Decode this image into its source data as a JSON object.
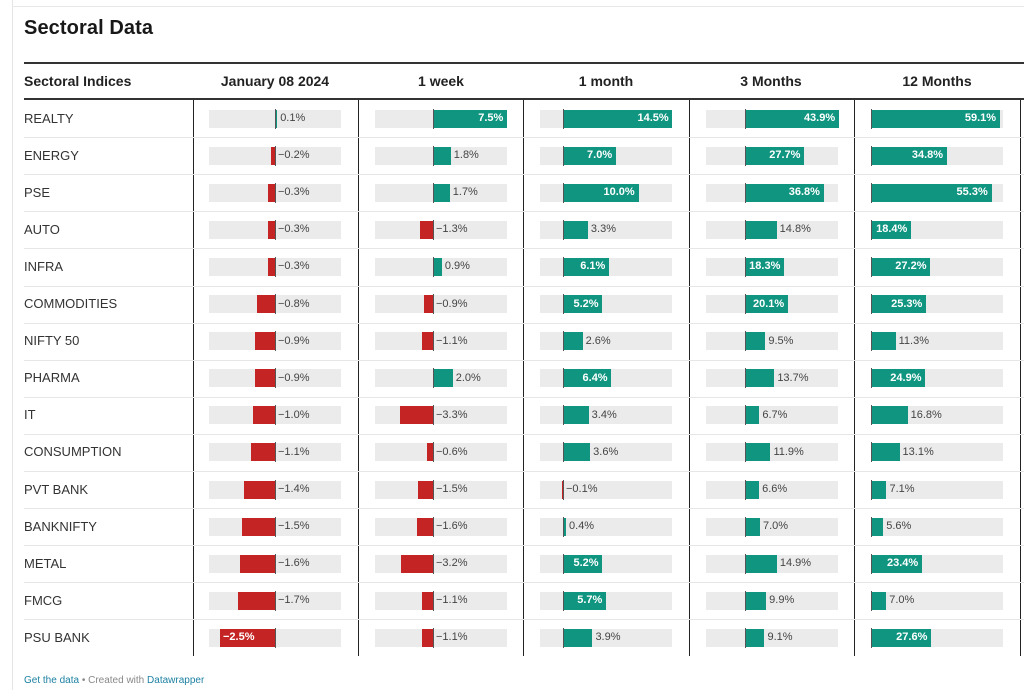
{
  "title": "Sectoral Data",
  "footer": {
    "get_data": "Get the data",
    "sep": " • Created with ",
    "brand": "Datawrapper"
  },
  "colors": {
    "positive": "#109580",
    "negative": "#c42424",
    "background_box": "#ebebeb"
  },
  "chart_data": {
    "type": "table",
    "row_header": "Sectoral Indices",
    "columns": [
      "January 08 2024",
      "1 week",
      "1 month",
      "3 Months",
      "12 Months"
    ],
    "unit": "%",
    "rows": [
      {
        "name": "REALTY",
        "values": [
          0.1,
          7.5,
          14.5,
          43.9,
          59.1
        ]
      },
      {
        "name": "ENERGY",
        "values": [
          -0.2,
          1.8,
          7.0,
          27.7,
          34.8
        ]
      },
      {
        "name": "PSE",
        "values": [
          -0.3,
          1.7,
          10.0,
          36.8,
          55.3
        ]
      },
      {
        "name": "AUTO",
        "values": [
          -0.3,
          -1.3,
          3.3,
          14.8,
          18.4
        ]
      },
      {
        "name": "INFRA",
        "values": [
          -0.3,
          0.9,
          6.1,
          18.3,
          27.2
        ]
      },
      {
        "name": "COMMODITIES",
        "values": [
          -0.8,
          -0.9,
          5.2,
          20.1,
          25.3
        ]
      },
      {
        "name": "NIFTY 50",
        "values": [
          -0.9,
          -1.1,
          2.6,
          9.5,
          11.3
        ]
      },
      {
        "name": "PHARMA",
        "values": [
          -0.9,
          2.0,
          6.4,
          13.7,
          24.9
        ]
      },
      {
        "name": "IT",
        "values": [
          -1.0,
          -3.3,
          3.4,
          6.7,
          16.8
        ]
      },
      {
        "name": "CONSUMPTION",
        "values": [
          -1.1,
          -0.6,
          3.6,
          11.9,
          13.1
        ]
      },
      {
        "name": "PVT BANK",
        "values": [
          -1.4,
          -1.5,
          -0.1,
          6.6,
          7.1
        ]
      },
      {
        "name": "BANKNIFTY",
        "values": [
          -1.5,
          -1.6,
          0.4,
          7.0,
          5.6
        ]
      },
      {
        "name": "METAL",
        "values": [
          -1.6,
          -3.2,
          5.2,
          14.9,
          23.4
        ]
      },
      {
        "name": "FMCG",
        "values": [
          -1.7,
          -1.1,
          5.7,
          9.9,
          7.0
        ]
      },
      {
        "name": "PSU BANK",
        "values": [
          -2.5,
          -1.1,
          3.9,
          9.1,
          27.6
        ]
      }
    ],
    "labels": [
      [
        "0.1%",
        "7.5%",
        "14.5%",
        "43.9%",
        "59.1%"
      ],
      [
        "−0.2%",
        "1.8%",
        "7.0%",
        "27.7%",
        "34.8%"
      ],
      [
        "−0.3%",
        "1.7%",
        "10.0%",
        "36.8%",
        "55.3%"
      ],
      [
        "−0.3%",
        "−1.3%",
        "3.3%",
        "14.8%",
        "18.4%"
      ],
      [
        "−0.3%",
        "0.9%",
        "6.1%",
        "18.3%",
        "27.2%"
      ],
      [
        "−0.8%",
        "−0.9%",
        "5.2%",
        "20.1%",
        "25.3%"
      ],
      [
        "−0.9%",
        "−1.1%",
        "2.6%",
        "9.5%",
        "11.3%"
      ],
      [
        "−0.9%",
        "2.0%",
        "6.4%",
        "13.7%",
        "24.9%"
      ],
      [
        "−1.0%",
        "−3.3%",
        "3.4%",
        "6.7%",
        "16.8%"
      ],
      [
        "−1.1%",
        "−0.6%",
        "3.6%",
        "11.9%",
        "13.1%"
      ],
      [
        "−1.4%",
        "−1.5%",
        "−0.1%",
        "6.6%",
        "7.1%"
      ],
      [
        "−1.5%",
        "−1.6%",
        "0.4%",
        "7.0%",
        "5.6%"
      ],
      [
        "−1.6%",
        "−3.2%",
        "5.2%",
        "14.9%",
        "23.4%"
      ],
      [
        "−1.7%",
        "−1.1%",
        "5.7%",
        "9.9%",
        "7.0%"
      ],
      [
        "−2.5%",
        "−1.1%",
        "3.9%",
        "9.1%",
        "27.6%"
      ]
    ]
  }
}
